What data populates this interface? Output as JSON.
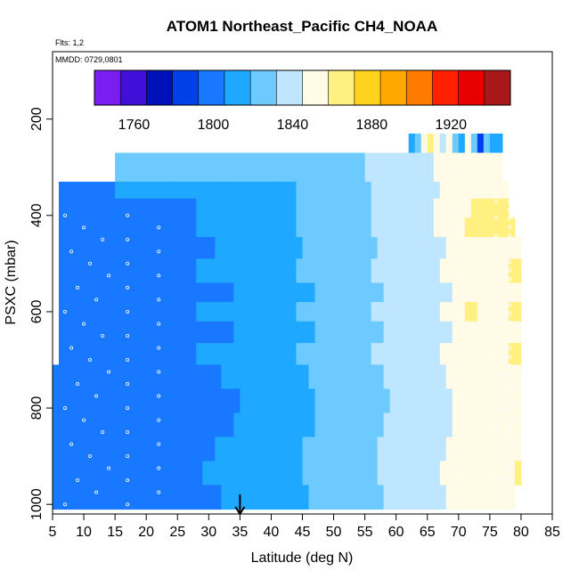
{
  "chart_data": {
    "type": "heatmap",
    "title": "ATOM1 Northeast_Pacific CH4_NOAA",
    "flights_note": "Flts: 1,2",
    "date_note": "MMDD: 0729,0801",
    "xlabel": "Latitude (deg N)",
    "ylabel": "PSXC (mbar)",
    "xlim": [
      5,
      85
    ],
    "ylim": [
      1020,
      60
    ],
    "x_ticks": [
      5,
      10,
      15,
      20,
      25,
      30,
      35,
      40,
      45,
      50,
      55,
      60,
      65,
      70,
      75,
      80,
      85
    ],
    "y_ticks": [
      200,
      400,
      600,
      800,
      1000
    ],
    "colorbar": {
      "min": 1740,
      "max": 1950,
      "step": 20,
      "labels": [
        1760,
        1800,
        1840,
        1880,
        1920
      ],
      "colors": [
        "#7a1cf2",
        "#4010d8",
        "#0010b8",
        "#0040e8",
        "#1878ff",
        "#1ea8ff",
        "#6ccaff",
        "#bfe6ff",
        "#fffbe6",
        "#fff080",
        "#ffd21e",
        "#ffa800",
        "#ff7a00",
        "#ff2000",
        "#e80000",
        "#a81818"
      ]
    },
    "arrow_marker_latitude": 35,
    "layers": [
      {
        "p_top": 230,
        "p_bot": 270,
        "lat_start": 62,
        "lat_end": 77,
        "profile": "top"
      },
      {
        "p_top": 270,
        "p_bot": 300,
        "lat_start": 15,
        "lat_end": 77,
        "profile": "upper"
      },
      {
        "p_top": 300,
        "p_bot": 330,
        "lat_start": 15,
        "lat_end": 77,
        "profile": "upper"
      },
      {
        "p_top": 330,
        "p_bot": 365,
        "lat_start": 6,
        "lat_end": 78,
        "profile": "mid_a"
      },
      {
        "p_top": 365,
        "p_bot": 405,
        "lat_start": 6,
        "lat_end": 78,
        "profile": "mid_b"
      },
      {
        "p_top": 405,
        "p_bot": 445,
        "lat_start": 6,
        "lat_end": 79,
        "profile": "mid_c"
      },
      {
        "p_top": 445,
        "p_bot": 490,
        "lat_start": 6,
        "lat_end": 80,
        "profile": "mid_d"
      },
      {
        "p_top": 490,
        "p_bot": 540,
        "lat_start": 6,
        "lat_end": 80,
        "profile": "mid_e"
      },
      {
        "p_top": 540,
        "p_bot": 580,
        "lat_start": 6,
        "lat_end": 80,
        "profile": "mid_f"
      },
      {
        "p_top": 580,
        "p_bot": 620,
        "lat_start": 6,
        "lat_end": 80,
        "profile": "mid_g"
      },
      {
        "p_top": 620,
        "p_bot": 665,
        "lat_start": 6,
        "lat_end": 80,
        "profile": "low_a"
      },
      {
        "p_top": 665,
        "p_bot": 710,
        "lat_start": 6,
        "lat_end": 80,
        "profile": "low_b"
      },
      {
        "p_top": 710,
        "p_bot": 760,
        "lat_start": 5,
        "lat_end": 80,
        "profile": "low_c"
      },
      {
        "p_top": 760,
        "p_bot": 810,
        "lat_start": 5,
        "lat_end": 80,
        "profile": "low_d"
      },
      {
        "p_top": 810,
        "p_bot": 860,
        "lat_start": 5,
        "lat_end": 80,
        "profile": "low_e"
      },
      {
        "p_top": 860,
        "p_bot": 910,
        "lat_start": 5,
        "lat_end": 80,
        "profile": "low_f"
      },
      {
        "p_top": 910,
        "p_bot": 960,
        "lat_start": 5,
        "lat_end": 80,
        "profile": "low_g"
      },
      {
        "p_top": 960,
        "p_bot": 1010,
        "lat_start": 5,
        "lat_end": 79,
        "profile": "surface"
      }
    ]
  }
}
